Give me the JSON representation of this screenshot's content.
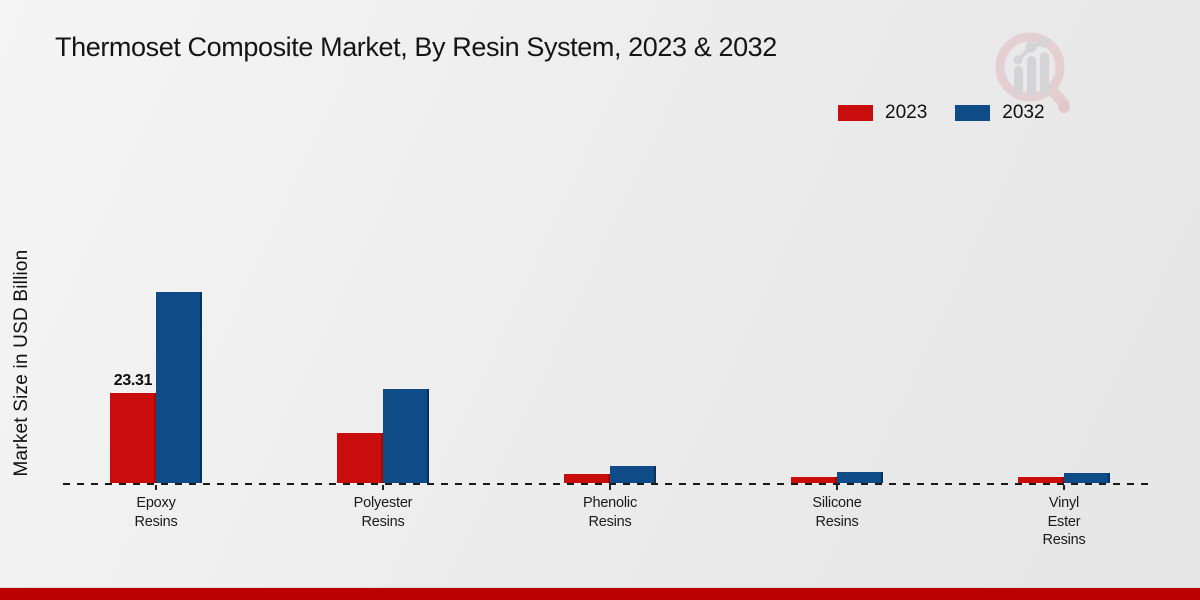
{
  "title": "Thermoset Composite Market, By Resin System, 2023 & 2032",
  "legend": [
    {
      "label": "2023",
      "color": "#c90d0d"
    },
    {
      "label": "2032",
      "color": "#0e4b87"
    }
  ],
  "watermark_icon": "market-research-magnifier-chart-logo",
  "chart_data": {
    "type": "bar",
    "title": "Thermoset Composite Market, By Resin System, 2023 & 2032",
    "xlabel": "",
    "ylabel": "Market Size in USD Billion",
    "categories": [
      "Epoxy Resins",
      "Polyester Resins",
      "Phenolic Resins",
      "Silicone Resins",
      "Vinyl Ester Resins"
    ],
    "category_label_lines": [
      [
        "Epoxy",
        "Resins"
      ],
      [
        "Polyester",
        "Resins"
      ],
      [
        "Phenolic",
        "Resins"
      ],
      [
        "Silicone",
        "Resins"
      ],
      [
        "Vinyl",
        "Ester",
        "Resins"
      ]
    ],
    "series": [
      {
        "name": "2023",
        "color": "#c90d0d",
        "values": [
          23.31,
          13.0,
          2.3,
          1.6,
          1.6
        ],
        "data_labels": [
          "23.31",
          null,
          null,
          null,
          null
        ]
      },
      {
        "name": "2032",
        "color": "#0e4b87",
        "values": [
          49.5,
          24.4,
          4.4,
          2.9,
          2.7
        ],
        "data_labels": [
          null,
          null,
          null,
          null,
          null
        ]
      }
    ],
    "ylim": [
      0,
      52
    ],
    "y_axis_visible": false,
    "grid": false,
    "baseline_style": "dashed",
    "legend_position": "top-right",
    "shown_data_label": "23.31"
  },
  "footer": {
    "accent_color": "#bb0101"
  }
}
